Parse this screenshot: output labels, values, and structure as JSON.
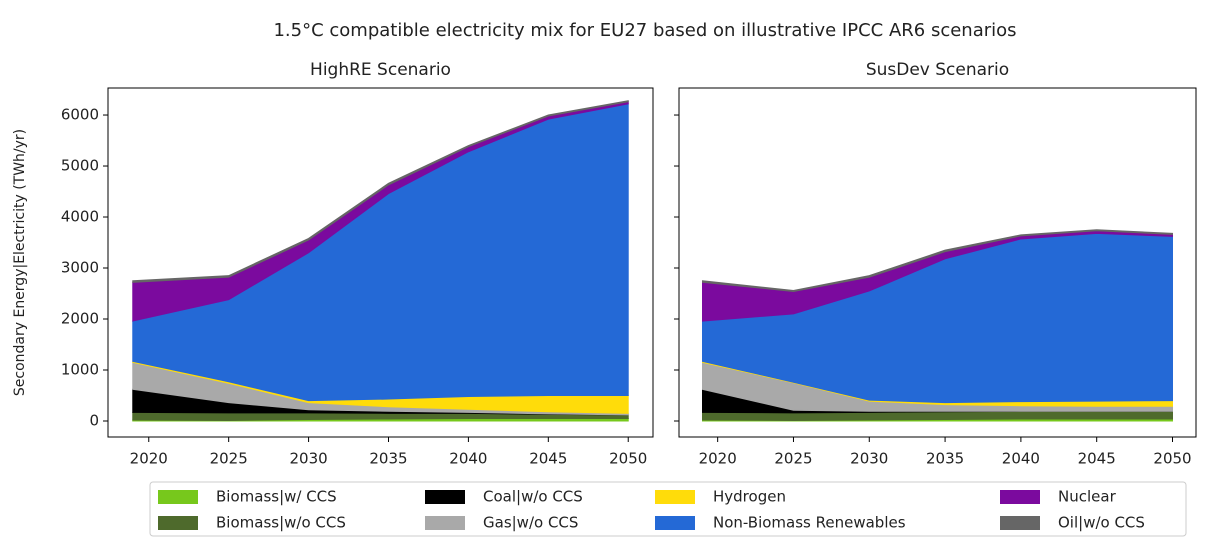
{
  "title": "1.5°C compatible electricity mix for EU27 based on illustrative IPCC AR6 scenarios",
  "chart_data": [
    {
      "type": "stacked_area",
      "title": "HighRE Scenario",
      "y_label": "Secondary Energy|Electricity (TWh/yr)",
      "x": [
        2019,
        2025,
        2030,
        2035,
        2040,
        2045,
        2050
      ],
      "xlim": [
        2017.45,
        2051.55
      ],
      "xticks": [
        2020,
        2025,
        2030,
        2035,
        2040,
        2045,
        2050
      ],
      "ylim": [
        -314,
        6530
      ],
      "yticks": [
        0,
        1000,
        2000,
        3000,
        4000,
        5000,
        6000
      ],
      "series": [
        {
          "name": "Biomass|w/ CCS",
          "color": "#77c81c",
          "values": [
            20,
            10,
            30,
            40,
            50,
            50,
            50
          ]
        },
        {
          "name": "Biomass|w/o CCS",
          "color": "#4e6a2c",
          "values": [
            150,
            150,
            130,
            110,
            100,
            80,
            70
          ]
        },
        {
          "name": "Coal|w/o CCS",
          "color": "#000000",
          "values": [
            450,
            200,
            60,
            40,
            20,
            10,
            0
          ]
        },
        {
          "name": "Gas|w/o CCS",
          "color": "#a9a9a9",
          "values": [
            530,
            380,
            140,
            90,
            60,
            40,
            30
          ]
        },
        {
          "name": "Hydrogen",
          "color": "#ffdc0a",
          "values": [
            20,
            30,
            40,
            150,
            250,
            320,
            350
          ]
        },
        {
          "name": "Non-Biomass Renewables",
          "color": "#2469d6",
          "values": [
            790,
            1610,
            2900,
            4030,
            4800,
            5420,
            5720
          ]
        },
        {
          "name": "Nuclear",
          "color": "#7b0a9e",
          "values": [
            760,
            440,
            250,
            170,
            100,
            60,
            40
          ]
        },
        {
          "name": "Oil|w/o CCS",
          "color": "#666666",
          "values": [
            30,
            30,
            30,
            30,
            20,
            20,
            20
          ]
        }
      ]
    },
    {
      "type": "stacked_area",
      "title": "SusDev Scenario",
      "x": [
        2019,
        2025,
        2030,
        2035,
        2040,
        2045,
        2050
      ],
      "xlim": [
        2017.45,
        2051.55
      ],
      "xticks": [
        2020,
        2025,
        2030,
        2035,
        2040,
        2045,
        2050
      ],
      "series": [
        {
          "values": [
            20,
            10,
            20,
            30,
            40,
            40,
            40
          ]
        },
        {
          "values": [
            150,
            150,
            150,
            150,
            150,
            150,
            150
          ]
        },
        {
          "values": [
            450,
            50,
            20,
            10,
            0,
            0,
            0
          ]
        },
        {
          "values": [
            530,
            540,
            200,
            130,
            110,
            100,
            100
          ]
        },
        {
          "values": [
            20,
            10,
            20,
            40,
            80,
            100,
            110
          ]
        },
        {
          "values": [
            790,
            1340,
            2140,
            2820,
            3190,
            3290,
            3220
          ]
        },
        {
          "values": [
            760,
            440,
            270,
            140,
            60,
            50,
            40
          ]
        },
        {
          "values": [
            30,
            20,
            30,
            30,
            20,
            20,
            20
          ]
        }
      ]
    }
  ]
}
